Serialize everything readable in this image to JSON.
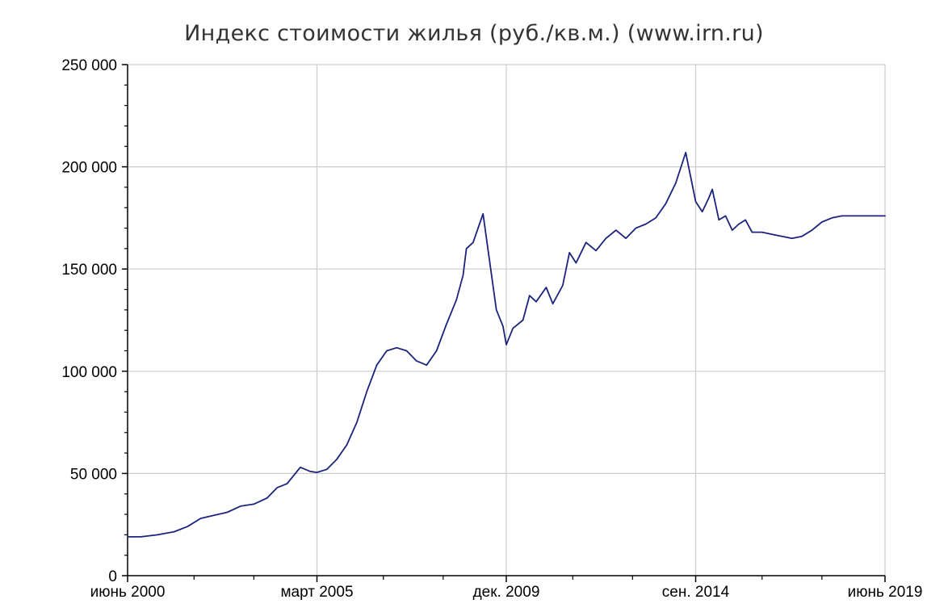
{
  "chart_data": {
    "type": "line",
    "title": "Индекс стоимости жилья (руб./кв.м.) (www.irn.ru)",
    "xlabel": "",
    "ylabel": "",
    "xlim": [
      "2000-06",
      "2019-06"
    ],
    "ylim": [
      0,
      250000
    ],
    "grid": true,
    "line_color": "#1a237e",
    "grid_color": "#cccccc",
    "y_ticks": [
      {
        "value": 0,
        "label": "0"
      },
      {
        "value": 50000,
        "label": "50 000"
      },
      {
        "value": 100000,
        "label": "100 000"
      },
      {
        "value": 150000,
        "label": "150 000"
      },
      {
        "value": 200000,
        "label": "200 000"
      },
      {
        "value": 250000,
        "label": "250 000"
      }
    ],
    "x_ticks": [
      {
        "date": "2000-06",
        "label": "июнь 2000"
      },
      {
        "date": "2005-03",
        "label": "март 2005"
      },
      {
        "date": "2009-12",
        "label": "дек. 2009"
      },
      {
        "date": "2014-09",
        "label": "сен. 2014"
      },
      {
        "date": "2019-06",
        "label": "июнь 2019"
      }
    ],
    "x_minor_ticks": [
      "2002-02",
      "2003-08",
      "2006-11",
      "2008-05",
      "2011-08",
      "2013-02",
      "2016-05",
      "2017-11"
    ],
    "series": [
      {
        "x": [
          "2000-06",
          "2000-10",
          "2001-03",
          "2001-08",
          "2001-12",
          "2002-04",
          "2002-08",
          "2002-12",
          "2003-04",
          "2003-08",
          "2003-12",
          "2004-03",
          "2004-06",
          "2004-10",
          "2005-01",
          "2005-03",
          "2005-06",
          "2005-09",
          "2005-12",
          "2006-03",
          "2006-06",
          "2006-09",
          "2006-12",
          "2007-03",
          "2007-06",
          "2007-09",
          "2007-12",
          "2008-03",
          "2008-06",
          "2008-09",
          "2008-11",
          "2008-12",
          "2009-02",
          "2009-05",
          "2009-09",
          "2009-11",
          "2009-12",
          "2010-02",
          "2010-05",
          "2010-07",
          "2010-09",
          "2010-12",
          "2011-02",
          "2011-05",
          "2011-07",
          "2011-09",
          "2011-12",
          "2012-03",
          "2012-06",
          "2012-09",
          "2012-12",
          "2013-03",
          "2013-06",
          "2013-09",
          "2013-12",
          "2014-03",
          "2014-06",
          "2014-09",
          "2014-11",
          "2015-01",
          "2015-02",
          "2015-04",
          "2015-06",
          "2015-08",
          "2015-10",
          "2015-12",
          "2016-02",
          "2016-05",
          "2016-08",
          "2016-11",
          "2017-02",
          "2017-05",
          "2017-08",
          "2017-11",
          "2018-02",
          "2018-05",
          "2018-08",
          "2018-11",
          "2019-02",
          "2019-06"
        ],
        "y": [
          19000,
          19000,
          20000,
          21500,
          24000,
          28000,
          29500,
          31000,
          34000,
          35000,
          38000,
          43000,
          45000,
          53000,
          51000,
          50500,
          52000,
          57000,
          64000,
          75000,
          90000,
          103000,
          110000,
          111500,
          110000,
          105000,
          103000,
          110000,
          123000,
          135000,
          147000,
          160000,
          163000,
          177000,
          130000,
          122000,
          113000,
          121000,
          125000,
          137000,
          134000,
          141000,
          133000,
          142000,
          158000,
          153000,
          163000,
          159000,
          165000,
          169000,
          165000,
          170000,
          172000,
          175000,
          182000,
          192000,
          207000,
          183000,
          178000,
          185000,
          189000,
          174000,
          176000,
          169000,
          172000,
          174000,
          168000,
          168000,
          167000,
          166000,
          165000,
          166000,
          169000,
          173000,
          175000,
          176000,
          176000,
          176000,
          176000,
          176000
        ]
      }
    ]
  }
}
